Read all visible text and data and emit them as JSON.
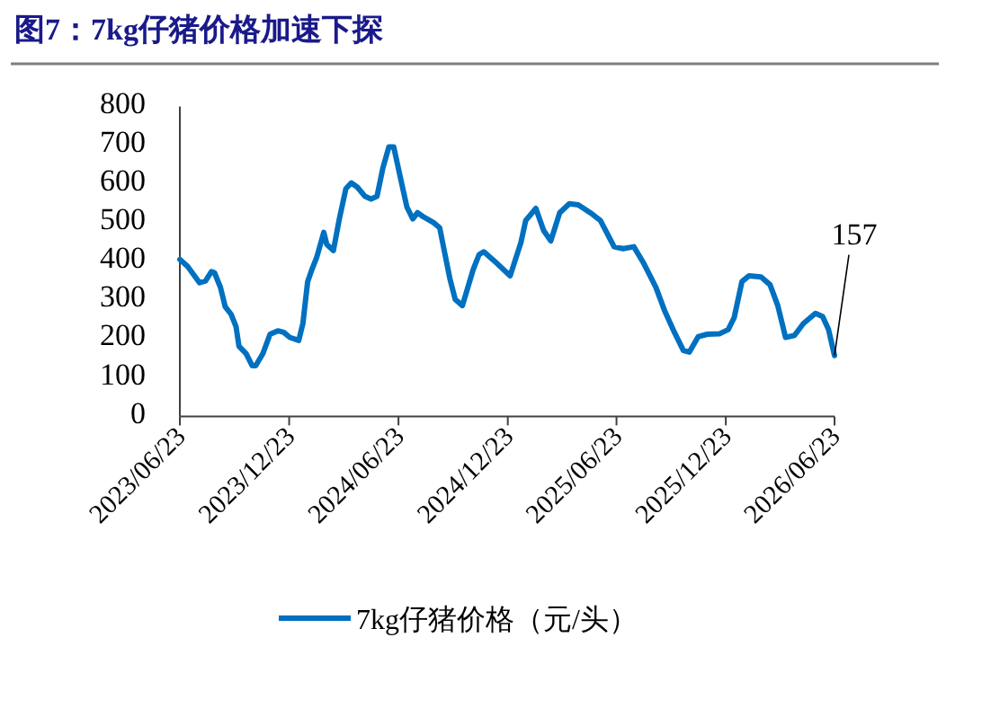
{
  "chart_data": {
    "type": "line",
    "title": "图7：7kg仔猪价格加速下探",
    "x": [
      "2023-06-23",
      "2023-07-06",
      "2023-07-26",
      "2023-08-05",
      "2023-08-15",
      "2023-08-20",
      "2023-08-30",
      "2023-09-07",
      "2023-09-17",
      "2023-09-25",
      "2023-09-30",
      "2023-10-12",
      "2023-10-22",
      "2023-10-28",
      "2023-11-09",
      "2023-11-21",
      "2023-12-04",
      "2023-12-14",
      "2023-12-24",
      "2024-01-08",
      "2024-01-15",
      "2024-01-23",
      "2024-01-30",
      "2024-02-07",
      "2024-02-19",
      "2024-02-24",
      "2024-03-06",
      "2024-03-16",
      "2024-03-27",
      "2024-04-05",
      "2024-04-15",
      "2024-04-28",
      "2024-05-08",
      "2024-05-18",
      "2024-05-28",
      "2024-06-07",
      "2024-06-15",
      "2024-06-27",
      "2024-07-07",
      "2024-07-17",
      "2024-07-25",
      "2024-08-04",
      "2024-08-21",
      "2024-08-31",
      "2024-09-08",
      "2024-09-17",
      "2024-09-26",
      "2024-10-08",
      "2024-10-14",
      "2024-10-26",
      "2024-11-05",
      "2024-11-13",
      "2024-11-30",
      "2024-12-27",
      "2025-01-14",
      "2025-01-22",
      "2025-02-08",
      "2025-02-21",
      "2025-03-05",
      "2025-03-20",
      "2025-04-05",
      "2025-04-20",
      "2025-05-10",
      "2025-05-27",
      "2025-06-19",
      "2025-07-04",
      "2025-07-22",
      "2025-08-08",
      "2025-08-28",
      "2025-09-12",
      "2025-09-28",
      "2025-10-13",
      "2025-10-23",
      "2025-11-07",
      "2025-11-22",
      "2025-12-12",
      "2025-12-27",
      "2026-01-06",
      "2026-01-19",
      "2026-01-31",
      "2026-02-20",
      "2026-03-07",
      "2026-03-20",
      "2026-04-02",
      "2026-04-17",
      "2026-05-02",
      "2026-05-22",
      "2026-06-03",
      "2026-06-13",
      "2026-06-23"
    ],
    "series": [
      {
        "name": "7kg仔猪价格（元/头）",
        "color": "#0070c0",
        "values": [
          405,
          387,
          345,
          350,
          374,
          371,
          333,
          283,
          263,
          232,
          181,
          162,
          131,
          131,
          162,
          212,
          221,
          217,
          204,
          196,
          240,
          348,
          379,
          410,
          475,
          444,
          428,
          510,
          588,
          603,
          592,
          568,
          561,
          568,
          642,
          696,
          696,
          611,
          541,
          510,
          526,
          515,
          500,
          487,
          425,
          356,
          302,
          286,
          317,
          379,
          418,
          425,
          402,
          363,
          449,
          506,
          537,
          480,
          453,
          526,
          549,
          546,
          526,
          506,
          438,
          433,
          438,
          394,
          333,
          271,
          217,
          170,
          166,
          206,
          212,
          213,
          224,
          255,
          348,
          363,
          360,
          340,
          286,
          204,
          209,
          240,
          266,
          258,
          224,
          157
        ]
      }
    ],
    "xlim": [
      "2023-06-23",
      "2026-06-23"
    ],
    "xticks": [
      {
        "value": "2023-06-23",
        "label": "2023/06/23"
      },
      {
        "value": "2023-12-23",
        "label": "2023/12/23"
      },
      {
        "value": "2024-06-23",
        "label": "2024/06/23"
      },
      {
        "value": "2024-12-23",
        "label": "2024/12/23"
      },
      {
        "value": "2025-06-23",
        "label": "2025/06/23"
      },
      {
        "value": "2025-12-23",
        "label": "2025/12/23"
      },
      {
        "value": "2026-06-23",
        "label": "2026/06/23"
      }
    ],
    "ylim": [
      0,
      800
    ],
    "yticks": [
      0,
      100,
      200,
      300,
      400,
      500,
      600,
      700,
      800
    ],
    "legend": "bottom",
    "annotations": [
      {
        "text": "157",
        "x": "2026-06-23",
        "y": 157
      }
    ]
  }
}
